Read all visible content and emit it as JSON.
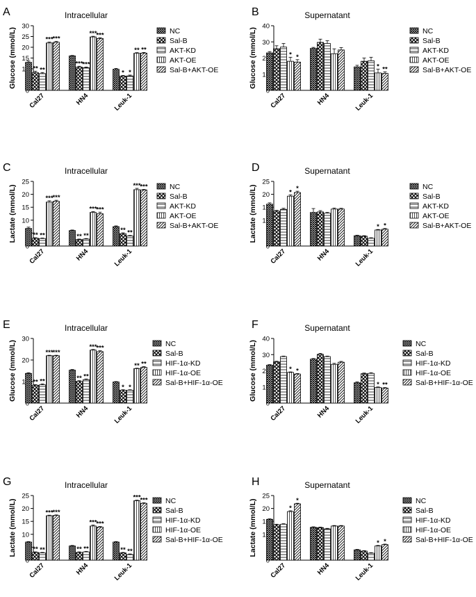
{
  "legend_sets": {
    "akt": [
      "NC",
      "Sal-B",
      "AKT-KD",
      "AKT-OE",
      "Sal-B+AKT-OE"
    ],
    "hif": [
      "NC",
      "Sal-B",
      "HIF-1α-KD",
      "HIF-1α-OE",
      "Sal-B+HIF-1α-OE"
    ]
  },
  "chart_data": [
    {
      "panel": "A",
      "type": "bar",
      "title": "Intracellular",
      "ylabel": "Glucose (mmol/L)",
      "categories": [
        "Cal27",
        "HN4",
        "Leuk-1"
      ],
      "ylim": [
        0,
        30
      ],
      "yticks": [
        0,
        5,
        10,
        15,
        20,
        25,
        30
      ],
      "legend": "akt",
      "series": [
        {
          "name": "NC",
          "values": [
            13,
            16,
            9.8
          ]
        },
        {
          "name": "Sal-B",
          "values": [
            8.2,
            10.8,
            6.6
          ]
        },
        {
          "name": "AKT-KD",
          "values": [
            7.8,
            10.5,
            6.7
          ]
        },
        {
          "name": "AKT-OE",
          "values": [
            22,
            24.8,
            17.2
          ]
        },
        {
          "name": "Sal-B+AKT-OE",
          "values": [
            22.3,
            24.1,
            17.3
          ]
        }
      ],
      "errors": [
        [
          0.6,
          0.7,
          0.5,
          0.4,
          0.4
        ],
        [
          0.2,
          0.4,
          0.3,
          0.3,
          0.3
        ],
        [
          0.4,
          0.3,
          0.4,
          0.3,
          0.3
        ]
      ],
      "sig": [
        [
          "",
          "**",
          "**",
          "***",
          "***"
        ],
        [
          "",
          "***",
          "***",
          "***",
          "***"
        ],
        [
          "",
          "*",
          "*",
          "**",
          "**"
        ]
      ]
    },
    {
      "panel": "B",
      "type": "bar",
      "title": "Supernatant",
      "ylabel": "Glucose (mmol/L)",
      "categories": [
        "Cal27",
        "HN4",
        "Leuk-1"
      ],
      "ylim": [
        0,
        40
      ],
      "yticks": [
        0,
        10,
        20,
        30,
        40
      ],
      "legend": "akt",
      "series": [
        {
          "name": "NC",
          "values": [
            23.2,
            26,
            14.5
          ]
        },
        {
          "name": "Sal-B",
          "values": [
            25.8,
            29.7,
            18
          ]
        },
        {
          "name": "AKT-KD",
          "values": [
            26.8,
            29,
            18.3
          ]
        },
        {
          "name": "AKT-OE",
          "values": [
            18,
            22.7,
            10.8
          ]
        },
        {
          "name": "Sal-B+AKT-OE",
          "values": [
            17.5,
            25,
            10.5
          ]
        }
      ],
      "errors": [
        [
          0.8,
          1.8,
          2.2,
          2.5,
          1.5
        ],
        [
          0.6,
          2,
          1.7,
          3,
          1.5
        ],
        [
          1,
          2,
          2.2,
          2.3,
          1
        ]
      ],
      "sig": [
        [
          "",
          "",
          "",
          "*",
          "*"
        ],
        [
          "",
          "",
          "",
          "",
          ""
        ],
        [
          "",
          "",
          "",
          "*",
          "**"
        ]
      ]
    },
    {
      "panel": "C",
      "type": "bar",
      "title": "Intracellular",
      "ylabel": "Lactate (mmol/L)",
      "categories": [
        "Cal27",
        "HN4",
        "Leuk-1"
      ],
      "ylim": [
        0,
        25
      ],
      "yticks": [
        0,
        5,
        10,
        15,
        20,
        25
      ],
      "legend": "akt",
      "series": [
        {
          "name": "NC",
          "values": [
            6.8,
            6,
            7.5
          ]
        },
        {
          "name": "Sal-B",
          "values": [
            3,
            2.5,
            4.8
          ]
        },
        {
          "name": "AKT-KD",
          "values": [
            2.9,
            2.7,
            3.9
          ]
        },
        {
          "name": "AKT-OE",
          "values": [
            17,
            13,
            21.8
          ]
        },
        {
          "name": "Sal-B+AKT-OE",
          "values": [
            17.3,
            12.5,
            21.7
          ]
        }
      ],
      "errors": [
        [
          0.5,
          0.2,
          0.2,
          0.5,
          0.4
        ],
        [
          0.2,
          0.2,
          0.2,
          0.3,
          0.6
        ],
        [
          0.3,
          0.3,
          0.2,
          0.5,
          0.2
        ]
      ],
      "sig": [
        [
          "",
          "**",
          "**",
          "***",
          "***"
        ],
        [
          "",
          "**",
          "**",
          "***",
          "***"
        ],
        [
          "",
          "**",
          "**",
          "***",
          "***"
        ]
      ]
    },
    {
      "panel": "D",
      "type": "bar",
      "title": "Supernatant",
      "ylabel": "Lactate (mmol/L)",
      "categories": [
        "Cal27",
        "HN4",
        "Leuk-1"
      ],
      "ylim": [
        0,
        25
      ],
      "yticks": [
        0,
        5,
        10,
        15,
        20,
        25
      ],
      "legend": "akt",
      "series": [
        {
          "name": "NC",
          "values": [
            16.2,
            13,
            4
          ]
        },
        {
          "name": "Sal-B",
          "values": [
            13.5,
            13.2,
            3.8
          ]
        },
        {
          "name": "AKT-KD",
          "values": [
            14.2,
            12.7,
            3
          ]
        },
        {
          "name": "AKT-OE",
          "values": [
            19.3,
            14.3,
            6.2
          ]
        },
        {
          "name": "Sal-B+AKT-OE",
          "values": [
            20.7,
            14.3,
            6.5
          ]
        }
      ],
      "errors": [
        [
          0.5,
          0.3,
          0.4,
          0.5,
          0.5
        ],
        [
          1.5,
          0.5,
          0.3,
          0.4,
          0.3
        ],
        [
          0.2,
          0.2,
          0.2,
          0.2,
          0.3
        ]
      ],
      "sig": [
        [
          "",
          "",
          "",
          "*",
          "*"
        ],
        [
          "",
          "",
          "",
          "",
          ""
        ],
        [
          "",
          "",
          "",
          "*",
          "*"
        ]
      ]
    },
    {
      "panel": "E",
      "type": "bar",
      "title": "Intracellular",
      "ylabel": "Glucose (mmol/L)",
      "categories": [
        "Cal27",
        "HN4",
        "Leuk-1"
      ],
      "ylim": [
        0,
        30
      ],
      "yticks": [
        0,
        10,
        20,
        30
      ],
      "legend": "hif",
      "series": [
        {
          "name": "NC",
          "values": [
            13.8,
            15.3,
            9.8
          ]
        },
        {
          "name": "Sal-B",
          "values": [
            8.3,
            10.1,
            6
          ]
        },
        {
          "name": "HIF-1α-KD",
          "values": [
            8.5,
            10.9,
            6
          ]
        },
        {
          "name": "HIF-1α-OE",
          "values": [
            22,
            24.6,
            16
          ]
        },
        {
          "name": "Sal-B+HIF-1α-OE",
          "values": [
            22,
            23.9,
            16.6
          ]
        }
      ],
      "errors": [
        [
          0.3,
          0.3,
          0.4,
          0.2,
          0.2
        ],
        [
          0.3,
          0.3,
          0.3,
          0.3,
          0.4
        ],
        [
          0.2,
          0.2,
          0.2,
          0.2,
          0.3
        ]
      ],
      "sig": [
        [
          "",
          "**",
          "**",
          "***",
          "***"
        ],
        [
          "",
          "**",
          "**",
          "***",
          "***"
        ],
        [
          "",
          "*",
          "*",
          "**",
          "**"
        ]
      ]
    },
    {
      "panel": "F",
      "type": "bar",
      "title": "Supernatant",
      "ylabel": "Glucose (mmol/L)",
      "categories": [
        "Cal27",
        "HN4",
        "Leuk-1"
      ],
      "ylim": [
        0,
        40
      ],
      "yticks": [
        0,
        10,
        20,
        30,
        40
      ],
      "legend": "hif",
      "series": [
        {
          "name": "NC",
          "values": [
            23.5,
            27.2,
            12.6
          ]
        },
        {
          "name": "Sal-B",
          "values": [
            25.5,
            30.2,
            18.2
          ]
        },
        {
          "name": "HIF-1α-KD",
          "values": [
            28.8,
            28.8,
            18.4
          ]
        },
        {
          "name": "HIF-1α-OE",
          "values": [
            19,
            24,
            9.7
          ]
        },
        {
          "name": "Sal-B+HIF-1α-OE",
          "values": [
            18,
            25.3,
            9.3
          ]
        }
      ],
      "errors": [
        [
          0.3,
          0.4,
          0.3,
          0.3,
          0.3
        ],
        [
          0.4,
          0.6,
          0.3,
          0.6,
          0.5
        ],
        [
          0.5,
          0.4,
          0.4,
          0.3,
          0.3
        ]
      ],
      "sig": [
        [
          "",
          "",
          "",
          "*",
          "*"
        ],
        [
          "",
          "",
          "",
          "",
          ""
        ],
        [
          "",
          "",
          "",
          "*",
          "**"
        ]
      ]
    },
    {
      "panel": "G",
      "type": "bar",
      "title": "Intracellular",
      "ylabel": "Lactate (mmol/L)",
      "categories": [
        "Cal27",
        "HN4",
        "Leuk-1"
      ],
      "ylim": [
        0,
        25
      ],
      "yticks": [
        0,
        5,
        10,
        15,
        20,
        25
      ],
      "legend": "hif",
      "series": [
        {
          "name": "NC",
          "values": [
            7,
            5.5,
            7
          ]
        },
        {
          "name": "Sal-B",
          "values": [
            3,
            3,
            2.8
          ]
        },
        {
          "name": "HIF-1α-KD",
          "values": [
            2.8,
            3.2,
            2.2
          ]
        },
        {
          "name": "HIF-1α-OE",
          "values": [
            17.2,
            13.2,
            23
          ]
        },
        {
          "name": "Sal-B+HIF-1α-OE",
          "values": [
            17.3,
            12.8,
            22
          ]
        }
      ],
      "errors": [
        [
          0.2,
          0.2,
          0.2,
          0.2,
          0.2
        ],
        [
          0.2,
          0.2,
          0.2,
          0.4,
          0.2
        ],
        [
          0.2,
          0.2,
          0.2,
          0.2,
          0.2
        ]
      ],
      "sig": [
        [
          "",
          "**",
          "**",
          "***",
          "***"
        ],
        [
          "",
          "**",
          "**",
          "***",
          "***"
        ],
        [
          "",
          "**",
          "**",
          "***",
          "***"
        ]
      ]
    },
    {
      "panel": "H",
      "type": "bar",
      "title": "Supernatant",
      "ylabel": "Lactate (mmol/L)",
      "categories": [
        "Cal27",
        "HN4",
        "Leuk-1"
      ],
      "ylim": [
        0,
        25
      ],
      "yticks": [
        0,
        5,
        10,
        15,
        20,
        25
      ],
      "legend": "hif",
      "series": [
        {
          "name": "NC",
          "values": [
            15.8,
            12.7,
            4
          ]
        },
        {
          "name": "Sal-B",
          "values": [
            13.7,
            12.6,
            3.5
          ]
        },
        {
          "name": "HIF-1α-KD",
          "values": [
            13.9,
            12.1,
            2.7
          ]
        },
        {
          "name": "HIF-1α-OE",
          "values": [
            18.8,
            13.2,
            5.5
          ]
        },
        {
          "name": "Sal-B+HIF-1α-OE",
          "values": [
            21.8,
            13.2,
            6
          ]
        }
      ],
      "errors": [
        [
          0.2,
          0.2,
          0.2,
          0.3,
          0.2
        ],
        [
          0.2,
          0.2,
          0.2,
          0.2,
          0.2
        ],
        [
          0.2,
          0.2,
          0.2,
          0.2,
          0.2
        ]
      ],
      "sig": [
        [
          "",
          "",
          "",
          "*",
          "*"
        ],
        [
          "",
          "",
          "",
          "",
          ""
        ],
        [
          "",
          "",
          "",
          "*",
          "*"
        ]
      ]
    }
  ]
}
